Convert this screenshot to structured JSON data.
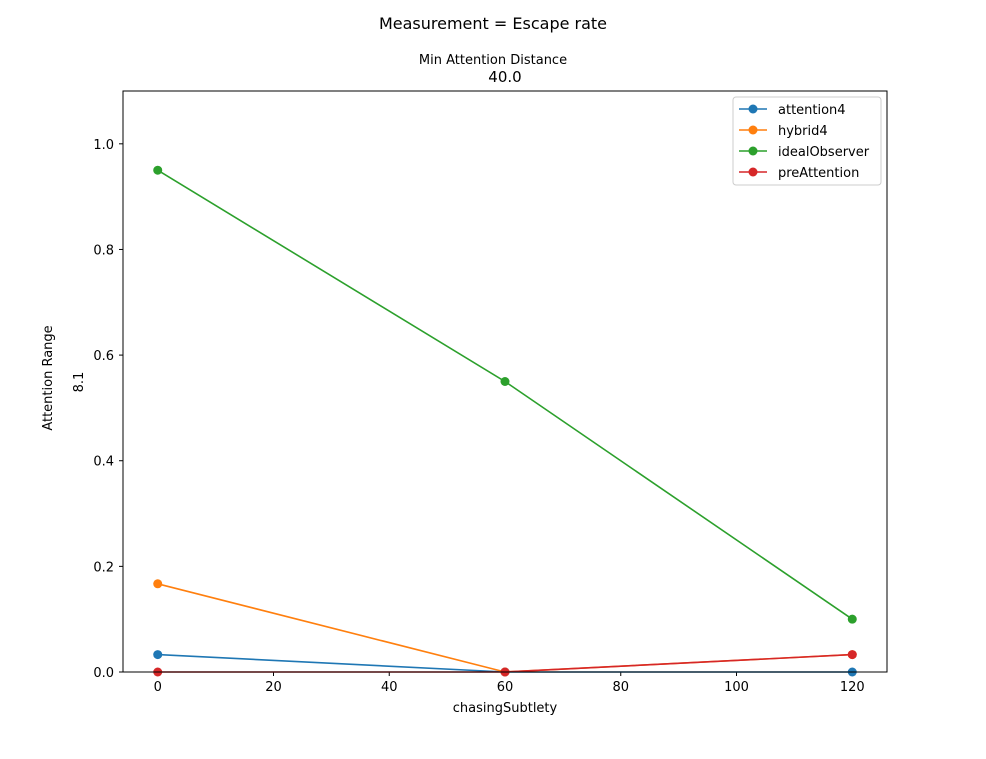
{
  "figure": {
    "suptitle": "Measurement = Escape rate",
    "panel_title_line1": "Min Attention Distance",
    "panel_title_line2": "40.0"
  },
  "chart_data": {
    "type": "line",
    "title": "Min Attention Distance 40.0",
    "xlabel": "chasingSubtlety",
    "ylabel_outer": "Attention Range",
    "ylabel_inner": "8.1",
    "x": [
      0,
      60,
      120
    ],
    "xlim": [
      -6,
      126
    ],
    "ylim": [
      0,
      1.1
    ],
    "xticks": [
      0,
      20,
      40,
      60,
      80,
      100,
      120
    ],
    "yticks": [
      0.0,
      0.2,
      0.4,
      0.6,
      0.8,
      1.0
    ],
    "xtick_labels": [
      "0",
      "20",
      "40",
      "60",
      "80",
      "100",
      "120"
    ],
    "ytick_labels": [
      "0.0",
      "0.2",
      "0.4",
      "0.6",
      "0.8",
      "1.0"
    ],
    "grid": false,
    "legend_position": "top-right",
    "series": [
      {
        "name": "attention4",
        "color": "#1f77b4",
        "values": [
          0.033,
          0.0,
          0.0
        ]
      },
      {
        "name": "hybrid4",
        "color": "#ff7f0e",
        "values": [
          0.167,
          0.0,
          0.033
        ]
      },
      {
        "name": "idealObserver",
        "color": "#2ca02c",
        "values": [
          0.95,
          0.55,
          0.1
        ]
      },
      {
        "name": "preAttention",
        "color": "#d62728",
        "values": [
          0.0,
          0.0,
          0.033
        ]
      }
    ]
  }
}
